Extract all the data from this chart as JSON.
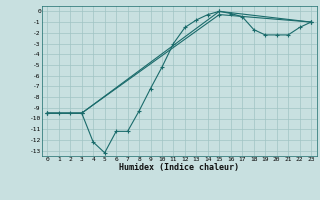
{
  "title": "",
  "xlabel": "Humidex (Indice chaleur)",
  "bg_color": "#c8e0e0",
  "grid_color": "#a0c4c4",
  "line_color": "#1a6b6b",
  "marker": "+",
  "xlim": [
    -0.5,
    23.5
  ],
  "ylim": [
    -13.5,
    0.5
  ],
  "xticks": [
    0,
    1,
    2,
    3,
    4,
    5,
    6,
    7,
    8,
    9,
    10,
    11,
    12,
    13,
    14,
    15,
    16,
    17,
    18,
    19,
    20,
    21,
    22,
    23
  ],
  "yticks": [
    0,
    -1,
    -2,
    -3,
    -4,
    -5,
    -6,
    -7,
    -8,
    -9,
    -10,
    -11,
    -12,
    -13
  ],
  "curve1_x": [
    0,
    1,
    2,
    3,
    4,
    5,
    6,
    7,
    8,
    9,
    10,
    11,
    12,
    13,
    14,
    15,
    16,
    17,
    18,
    19,
    20,
    21,
    22,
    23
  ],
  "curve1_y": [
    -9.5,
    -9.5,
    -9.5,
    -9.5,
    -12.2,
    -13.2,
    -11.2,
    -11.2,
    -9.3,
    -7.2,
    -5.2,
    -3.0,
    -1.5,
    -0.8,
    -0.3,
    0.0,
    -0.2,
    -0.5,
    -1.7,
    -2.2,
    -2.2,
    -2.2,
    -1.5,
    -1.0
  ],
  "curve2_x": [
    0,
    3,
    15,
    23
  ],
  "curve2_y": [
    -9.5,
    -9.5,
    0.0,
    -1.0
  ],
  "curve3_x": [
    0,
    3,
    15,
    23
  ],
  "curve3_y": [
    -9.5,
    -9.5,
    -0.3,
    -1.0
  ]
}
